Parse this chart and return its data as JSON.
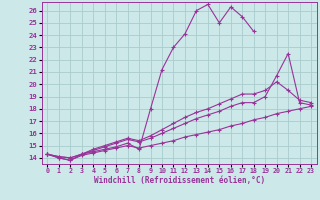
{
  "xlabel": "Windchill (Refroidissement éolien,°C)",
  "xlim": [
    -0.5,
    23.5
  ],
  "ylim": [
    13.5,
    26.7
  ],
  "xticks": [
    0,
    1,
    2,
    3,
    4,
    5,
    6,
    7,
    8,
    9,
    10,
    11,
    12,
    13,
    14,
    15,
    16,
    17,
    18,
    19,
    20,
    21,
    22,
    23
  ],
  "yticks": [
    14,
    15,
    16,
    17,
    18,
    19,
    20,
    21,
    22,
    23,
    24,
    25,
    26
  ],
  "bg_color": "#cce8e8",
  "line_color": "#993399",
  "grid_color": "#aacccc",
  "lines": [
    {
      "x": [
        0,
        1,
        2,
        3,
        4,
        5,
        6,
        7,
        8,
        9,
        10,
        11,
        12,
        13,
        14,
        15,
        16,
        17,
        18
      ],
      "y": [
        14.3,
        14.0,
        13.8,
        14.3,
        14.5,
        14.7,
        14.9,
        15.2,
        14.7,
        18.0,
        21.2,
        23.0,
        24.1,
        26.0,
        26.5,
        25.0,
        26.3,
        25.5,
        24.3
      ]
    },
    {
      "x": [
        0,
        1,
        2,
        3,
        4,
        5,
        6,
        7,
        8,
        9,
        10,
        11,
        12,
        13,
        14,
        15,
        16,
        17,
        18,
        19,
        20,
        21,
        22,
        23
      ],
      "y": [
        14.3,
        14.0,
        13.8,
        14.2,
        14.4,
        14.6,
        14.8,
        15.0,
        14.8,
        15.0,
        15.2,
        15.4,
        15.7,
        15.9,
        16.1,
        16.3,
        16.6,
        16.8,
        17.1,
        17.3,
        17.6,
        17.8,
        18.0,
        18.2
      ]
    },
    {
      "x": [
        0,
        1,
        2,
        3,
        4,
        5,
        6,
        7,
        8,
        9,
        10,
        11,
        12,
        13,
        14,
        15,
        16,
        17,
        18,
        19,
        20,
        21,
        22,
        23
      ],
      "y": [
        14.3,
        14.1,
        14.0,
        14.3,
        14.6,
        14.9,
        15.2,
        15.5,
        15.3,
        15.6,
        16.0,
        16.4,
        16.8,
        17.2,
        17.5,
        17.8,
        18.2,
        18.5,
        18.5,
        19.0,
        20.7,
        22.5,
        18.5,
        18.3
      ]
    },
    {
      "x": [
        0,
        1,
        2,
        3,
        4,
        5,
        6,
        7,
        8,
        9,
        10,
        11,
        12,
        13,
        14,
        15,
        16,
        17,
        18,
        19,
        20,
        21,
        22,
        23
      ],
      "y": [
        14.3,
        14.1,
        14.0,
        14.3,
        14.7,
        15.0,
        15.3,
        15.6,
        15.4,
        15.8,
        16.3,
        16.8,
        17.3,
        17.7,
        18.0,
        18.4,
        18.8,
        19.2,
        19.2,
        19.5,
        20.2,
        19.5,
        18.7,
        18.5
      ]
    }
  ]
}
